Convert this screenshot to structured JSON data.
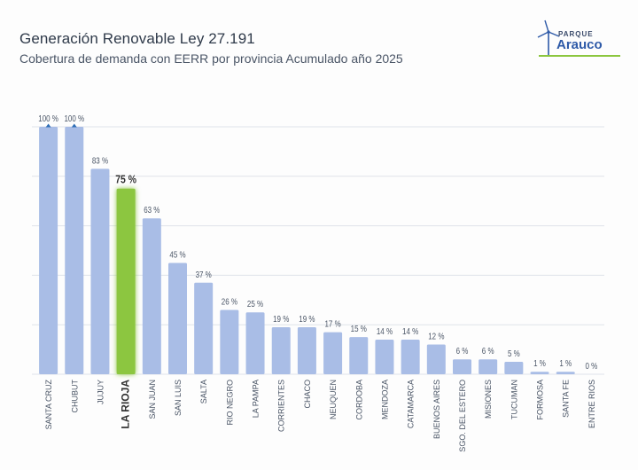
{
  "header": {
    "title": "Generación Renovable Ley 27.191",
    "subtitle": "Cobertura de demanda con EERR por provincia Acumulado año 2025"
  },
  "logo": {
    "line1": "PARQUE",
    "line2": "Arauco"
  },
  "colors": {
    "bar": "#a9bde6",
    "highlight": "#8cc63f",
    "grid": "#dfe3ea",
    "text": "#4a5566"
  },
  "chart_data": {
    "type": "bar",
    "title": "Generación Renovable Ley 27.191",
    "subtitle": "Cobertura de demanda con EERR por provincia Acumulado año 2025",
    "xlabel": "",
    "ylabel": "",
    "ylim": [
      0,
      100
    ],
    "grid": true,
    "highlight": "LA RIOJA",
    "categories": [
      "SANTA CRUZ",
      "CHUBUT",
      "JUJUY",
      "LA RIOJA",
      "SAN JUAN",
      "SAN LUIS",
      "SALTA",
      "RIO NEGRO",
      "LA PAMPA",
      "CORRIENTES",
      "CHACO",
      "NEUQUEN",
      "CORDOBA",
      "MENDOZA",
      "CATAMARCA",
      "BUENOS AIRES",
      "SGO. DEL ESTERO",
      "MISIONES",
      "TUCUMAN",
      "FORMOSA",
      "SANTA FE",
      "ENTRE RIOS"
    ],
    "values": [
      100,
      100,
      83,
      75,
      63,
      45,
      37,
      26,
      25,
      19,
      19,
      17,
      15,
      14,
      14,
      12,
      6,
      6,
      5,
      1,
      1,
      0
    ],
    "value_labels": [
      "100 %",
      "100 %",
      "83 %",
      "75 %",
      "63 %",
      "45 %",
      "37 %",
      "26 %",
      "25 %",
      "19 %",
      "19 %",
      "17 %",
      "15 %",
      "14 %",
      "14 %",
      "12 %",
      "6 %",
      "6 %",
      "5 %",
      "1 %",
      "1 %",
      "0 %"
    ],
    "capped": [
      true,
      true,
      false,
      false,
      false,
      false,
      false,
      false,
      false,
      false,
      false,
      false,
      false,
      false,
      false,
      false,
      false,
      false,
      false,
      false,
      false,
      false
    ]
  }
}
